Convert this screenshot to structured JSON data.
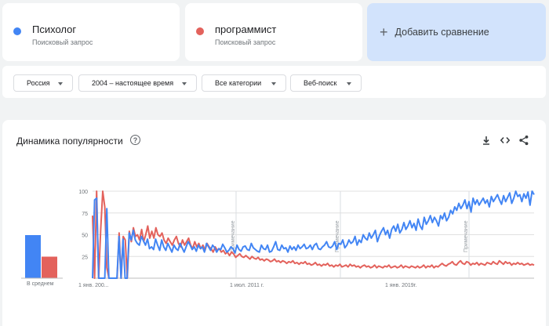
{
  "terms": [
    {
      "name": "Психолог",
      "subtitle": "Поисковый запрос",
      "color": "#4285f4"
    },
    {
      "name": "программист",
      "subtitle": "Поисковый запрос",
      "color": "#e3625c"
    }
  ],
  "add_comparison": {
    "label": "Добавить сравнение",
    "icon": "plus-icon"
  },
  "filters": [
    {
      "label": "Россия"
    },
    {
      "label": "2004 – настоящее время"
    },
    {
      "label": "Все категории"
    },
    {
      "label": "Веб-поиск"
    }
  ],
  "panel": {
    "title": "Динамика популярности",
    "help_icon": "?",
    "actions": [
      "download-icon",
      "embed-icon",
      "share-icon"
    ]
  },
  "chart_data": {
    "type": "line",
    "x_labels": [
      "1 янв. 200...",
      "1 июл. 2011 г.",
      "1 янв. 2019г."
    ],
    "y_ticks": [
      25,
      50,
      75,
      100
    ],
    "ylim": [
      0,
      100
    ],
    "annotations": [
      "Примечание",
      "Примечание",
      "Примечание"
    ],
    "average_label": "В среднем",
    "averages": [
      {
        "name": "Психолог",
        "value": 50
      },
      {
        "name": "программист",
        "value": 25
      }
    ],
    "series": [
      {
        "name": "Психолог",
        "color": "#4285f4",
        "values": [
          0,
          90,
          92,
          0,
          0,
          0,
          0,
          80,
          0,
          0,
          0,
          0,
          0,
          48,
          0,
          45,
          0,
          0,
          52,
          44,
          55,
          44,
          40,
          38,
          48,
          43,
          38,
          45,
          34,
          36,
          33,
          45,
          38,
          32,
          44,
          36,
          32,
          40,
          35,
          30,
          38,
          34,
          32,
          40,
          35,
          30,
          36,
          42,
          38,
          33,
          36,
          31,
          38,
          34,
          36,
          30,
          40,
          36,
          32,
          38,
          35,
          30,
          34,
          33,
          39,
          35,
          30,
          32,
          36,
          34,
          29,
          38,
          33,
          31,
          36,
          37,
          33,
          32,
          40,
          35,
          33,
          31,
          30,
          38,
          34,
          33,
          38,
          30,
          31,
          36,
          42,
          33,
          32,
          38,
          34,
          35,
          30,
          37,
          33,
          36,
          32,
          38,
          34,
          36,
          39,
          34,
          35,
          38,
          33,
          38,
          40,
          34,
          33,
          36,
          38,
          42,
          36,
          35,
          37,
          42,
          33,
          40,
          39,
          44,
          35,
          38,
          44,
          40,
          42,
          48,
          38,
          44,
          41,
          50,
          46,
          44,
          52,
          46,
          50,
          55,
          42,
          49,
          54,
          58,
          50,
          55,
          46,
          56,
          60,
          54,
          62,
          52,
          56,
          64,
          56,
          60,
          66,
          58,
          63,
          55,
          68,
          60,
          56,
          70,
          62,
          66,
          72,
          64,
          70,
          66,
          60,
          72,
          68,
          75,
          66,
          70,
          78,
          74,
          82,
          78,
          86,
          80,
          84,
          90,
          80,
          88,
          76,
          92,
          85,
          90,
          84,
          88,
          92,
          86,
          90,
          82,
          94,
          88,
          92,
          96,
          90,
          85,
          95,
          88,
          93,
          98,
          86,
          92,
          100,
          94,
          96,
          88,
          97,
          92,
          99,
          84,
          100,
          96
        ]
      },
      {
        "name": "программист",
        "color": "#e3625c",
        "values": [
          72,
          0,
          100,
          0,
          56,
          100,
          82,
          12,
          0,
          0,
          0,
          0,
          0,
          52,
          0,
          48,
          44,
          0,
          54,
          42,
          58,
          48,
          50,
          44,
          56,
          42,
          50,
          60,
          46,
          54,
          46,
          58,
          50,
          48,
          52,
          44,
          40,
          46,
          42,
          38,
          44,
          48,
          40,
          36,
          44,
          38,
          42,
          46,
          38,
          34,
          42,
          36,
          40,
          34,
          38,
          32,
          40,
          36,
          34,
          30,
          36,
          32,
          34,
          30,
          32,
          28,
          30,
          26,
          30,
          28,
          24,
          26,
          28,
          25,
          24,
          26,
          24,
          22,
          25,
          23,
          22,
          24,
          21,
          22,
          20,
          22,
          21,
          19,
          20,
          22,
          19,
          20,
          18,
          20,
          19,
          17,
          19,
          18,
          20,
          17,
          18,
          16,
          18,
          17,
          19,
          16,
          17,
          15,
          16,
          18,
          15,
          16,
          14,
          16,
          15,
          17,
          14,
          15,
          13,
          15,
          14,
          16,
          13,
          14,
          15,
          13,
          16,
          14,
          15,
          13,
          14,
          12,
          14,
          15,
          13,
          14,
          12,
          13,
          15,
          12,
          14,
          13,
          12,
          14,
          13,
          15,
          12,
          13,
          14,
          12,
          13,
          15,
          12,
          14,
          13,
          12,
          14,
          13,
          12,
          14,
          12,
          13,
          15,
          12,
          14,
          13,
          15,
          12,
          14,
          13,
          15,
          17,
          15,
          14,
          16,
          17,
          19,
          16,
          15,
          18,
          20,
          17,
          16,
          19,
          18,
          15,
          17,
          16,
          18,
          15,
          17,
          16,
          15,
          18,
          17,
          16,
          19,
          17,
          16,
          20,
          18,
          16,
          19,
          17,
          18,
          15,
          17,
          16,
          18,
          16,
          17,
          15,
          16,
          17,
          15,
          16,
          15
        ]
      }
    ]
  }
}
